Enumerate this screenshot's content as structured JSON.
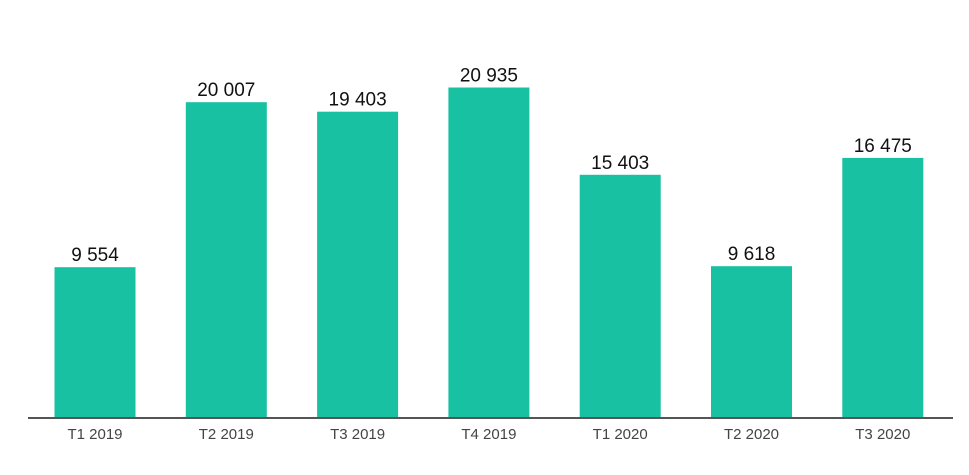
{
  "chart_data": {
    "type": "bar",
    "categories": [
      "T1 2019",
      "T2 2019",
      "T3 2019",
      "T4 2019",
      "T1 2020",
      "T2 2020",
      "T3 2020"
    ],
    "values": [
      9554,
      20007,
      19403,
      20935,
      15403,
      9618,
      16475
    ],
    "value_labels": [
      "9 554",
      "20 007",
      "19 403",
      "20 935",
      "15 403",
      "9 618",
      "16 475"
    ],
    "title": "",
    "xlabel": "",
    "ylabel": "",
    "ylim": [
      0,
      25000
    ],
    "grid": false,
    "legend": "none",
    "bar_color": "#17c1a1",
    "axis_color": "#555555"
  }
}
